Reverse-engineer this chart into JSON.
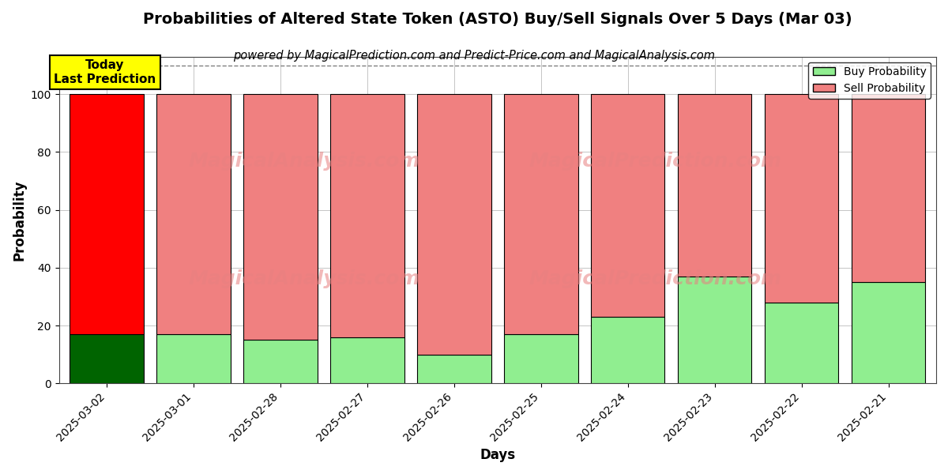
{
  "title": "Probabilities of Altered State Token (ASTO) Buy/Sell Signals Over 5 Days (Mar 03)",
  "subtitle": "powered by MagicalPrediction.com and Predict-Price.com and MagicalAnalysis.com",
  "xlabel": "Days",
  "ylabel": "Probability",
  "watermark_left": "MagicalAnalysis.com",
  "watermark_right": "MagicalPrediction.com",
  "categories": [
    "2025-03-02",
    "2025-03-01",
    "2025-02-28",
    "2025-02-27",
    "2025-02-26",
    "2025-02-25",
    "2025-02-24",
    "2025-02-23",
    "2025-02-22",
    "2025-02-21"
  ],
  "buy_values": [
    17,
    17,
    15,
    16,
    10,
    17,
    23,
    37,
    28,
    35
  ],
  "sell_values": [
    83,
    83,
    85,
    84,
    90,
    83,
    77,
    63,
    72,
    65
  ],
  "today_bar_buy_color": "#006400",
  "today_bar_sell_color": "#FF0000",
  "other_bar_buy_color": "#90EE90",
  "other_bar_sell_color": "#F08080",
  "bar_edge_color": "#000000",
  "today_annotation_bg": "#FFFF00",
  "today_annotation_text": "Today\nLast Prediction",
  "ylim": [
    0,
    113
  ],
  "yticks": [
    0,
    20,
    40,
    60,
    80,
    100
  ],
  "dashed_line_y": 110,
  "legend_buy_label": "Buy Probability",
  "legend_sell_label": "Sell Probability",
  "bar_width": 0.85,
  "background_color": "#ffffff",
  "grid_color": "#bbbbbb",
  "title_fontsize": 14,
  "subtitle_fontsize": 10.5,
  "axis_label_fontsize": 12,
  "tick_fontsize": 10
}
